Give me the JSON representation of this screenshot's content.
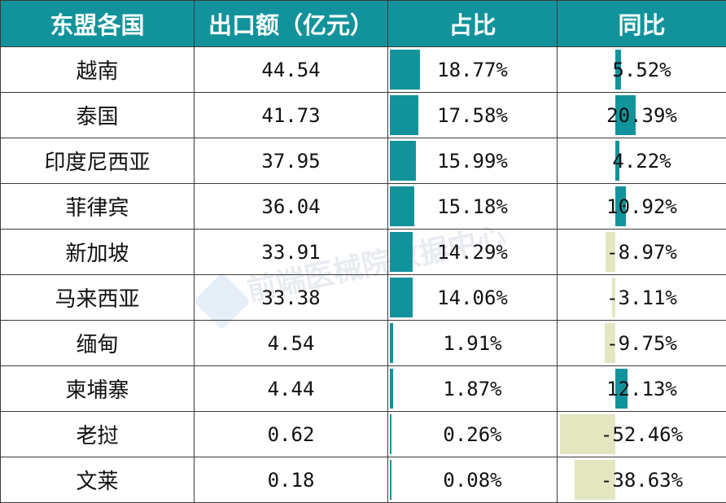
{
  "header": {
    "country": "东盟各国",
    "export": "出口额（亿元）",
    "share": "占比",
    "yoy": "同比"
  },
  "colors": {
    "header_bg": "#12939c",
    "share_bar": "#12939c",
    "yoy_positive": "#12939c",
    "yoy_negative": "#e4e6c0"
  },
  "watermark": "前端医械院数据中心",
  "chart_data": {
    "type": "table",
    "columns": [
      "东盟各国",
      "出口额（亿元）",
      "占比",
      "同比"
    ],
    "rows": [
      {
        "country": "越南",
        "export": "44.54",
        "share": "18.77%",
        "share_value": 18.77,
        "yoy": "5.52%",
        "yoy_value": 5.52
      },
      {
        "country": "泰国",
        "export": "41.73",
        "share": "17.58%",
        "share_value": 17.58,
        "yoy": "20.39%",
        "yoy_value": 20.39
      },
      {
        "country": "印度尼西亚",
        "export": "37.95",
        "share": "15.99%",
        "share_value": 15.99,
        "yoy": "4.22%",
        "yoy_value": 4.22
      },
      {
        "country": "菲律宾",
        "export": "36.04",
        "share": "15.18%",
        "share_value": 15.18,
        "yoy": "10.92%",
        "yoy_value": 10.92
      },
      {
        "country": "新加坡",
        "export": "33.91",
        "share": "14.29%",
        "share_value": 14.29,
        "yoy": "-8.97%",
        "yoy_value": -8.97
      },
      {
        "country": "马来西亚",
        "export": "33.38",
        "share": "14.06%",
        "share_value": 14.06,
        "yoy": "-3.11%",
        "yoy_value": -3.11
      },
      {
        "country": "缅甸",
        "export": "4.54",
        "share": "1.91%",
        "share_value": 1.91,
        "yoy": "-9.75%",
        "yoy_value": -9.75
      },
      {
        "country": "柬埔寨",
        "export": "4.44",
        "share": "1.87%",
        "share_value": 1.87,
        "yoy": "12.13%",
        "yoy_value": 12.13
      },
      {
        "country": "老挝",
        "export": "0.62",
        "share": "0.26%",
        "share_value": 0.26,
        "yoy": "-52.46%",
        "yoy_value": -52.46
      },
      {
        "country": "文莱",
        "export": "0.18",
        "share": "0.08%",
        "share_value": 0.08,
        "yoy": "-38.63%",
        "yoy_value": -38.63
      }
    ]
  }
}
